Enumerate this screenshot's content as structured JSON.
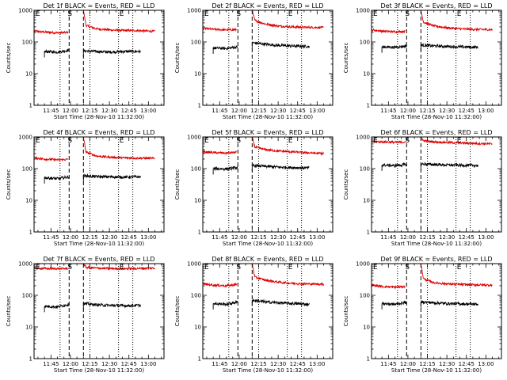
{
  "figure": {
    "colors": {
      "events": "#000000",
      "lld": "#dd0000",
      "axes": "#000000",
      "background": "#ffffff"
    },
    "markers": [
      "E",
      "S",
      "E"
    ],
    "start_time_label": "Start Time (28-Nov-10 11:32:00)"
  },
  "chart_data": [
    {
      "type": "line",
      "title": "Det 1f BLACK = Events, RED = LLD",
      "xlabel": "Start Time (28-Nov-10 11:32:00)",
      "ylabel": "Counts/sec",
      "yscale": "log",
      "ylim": [
        1,
        1000
      ],
      "xticks": [
        "11:45",
        "12:00",
        "12:15",
        "12:30",
        "12:45",
        "13:00"
      ],
      "yticks": [
        "1",
        "10",
        "100",
        "1000"
      ],
      "vlines": {
        "dotted": [
          "11:52",
          "12:15",
          "12:37",
          "12:48"
        ],
        "dashed": [
          "11:59",
          "12:10"
        ]
      },
      "series": [
        {
          "name": "LLD",
          "color": "#dd0000",
          "segments": [
            {
              "x": [
                "11:32",
                "11:40",
                "11:50",
                "11:58"
              ],
              "y": [
                220,
                205,
                195,
                200
              ]
            },
            {
              "x": [
                "12:10",
                "12:12",
                "12:20",
                "12:30",
                "12:40",
                "12:50",
                "13:05"
              ],
              "y": [
                1000,
                330,
                260,
                240,
                230,
                230,
                215
              ]
            }
          ]
        },
        {
          "name": "Events",
          "color": "#000000",
          "segments": [
            {
              "x": [
                "11:40",
                "11:50",
                "11:59"
              ],
              "y": [
                50,
                48,
                55
              ]
            },
            {
              "x": [
                "12:10",
                "12:20",
                "12:30",
                "12:40",
                "12:54"
              ],
              "y": [
                52,
                50,
                48,
                50,
                50
              ]
            }
          ]
        }
      ]
    },
    {
      "type": "line",
      "title": "Det 2f BLACK = Events, RED = LLD",
      "xlabel": "Start Time (28-Nov-10 11:32:00)",
      "ylabel": "Counts/sec",
      "yscale": "log",
      "ylim": [
        1,
        1000
      ],
      "xticks": [
        "11:45",
        "12:00",
        "12:15",
        "12:30",
        "12:45",
        "13:00"
      ],
      "yticks": [
        "1",
        "10",
        "100",
        "1000"
      ],
      "vlines": {
        "dotted": [
          "11:52",
          "12:15",
          "12:37",
          "12:48"
        ],
        "dashed": [
          "11:59",
          "12:10"
        ]
      },
      "series": [
        {
          "name": "LLD",
          "color": "#dd0000",
          "segments": [
            {
              "x": [
                "11:32",
                "11:40",
                "11:50",
                "11:58"
              ],
              "y": [
                270,
                250,
                240,
                245
              ]
            },
            {
              "x": [
                "12:10",
                "12:12",
                "12:20",
                "12:30",
                "12:40",
                "12:50",
                "13:05"
              ],
              "y": [
                1000,
                480,
                370,
                320,
                300,
                290,
                285
              ]
            }
          ]
        },
        {
          "name": "Events",
          "color": "#000000",
          "segments": [
            {
              "x": [
                "11:40",
                "11:50",
                "11:59"
              ],
              "y": [
                65,
                62,
                70
              ]
            },
            {
              "x": [
                "12:10",
                "12:20",
                "12:30",
                "12:40",
                "12:54"
              ],
              "y": [
                95,
                85,
                78,
                75,
                72
              ]
            }
          ]
        }
      ]
    },
    {
      "type": "line",
      "title": "Det 3f BLACK = Events, RED = LLD",
      "xlabel": "Start Time (28-Nov-10 11:32:00)",
      "ylabel": "Counts/sec",
      "yscale": "log",
      "ylim": [
        1,
        1000
      ],
      "xticks": [
        "11:45",
        "12:00",
        "12:15",
        "12:30",
        "12:45",
        "13:00"
      ],
      "yticks": [
        "1",
        "10",
        "100",
        "1000"
      ],
      "vlines": {
        "dotted": [
          "11:52",
          "12:15",
          "12:37",
          "12:48"
        ],
        "dashed": [
          "11:59",
          "12:10"
        ]
      },
      "series": [
        {
          "name": "LLD",
          "color": "#dd0000",
          "segments": [
            {
              "x": [
                "11:32",
                "11:40",
                "11:50",
                "11:58"
              ],
              "y": [
                240,
                220,
                210,
                215
              ]
            },
            {
              "x": [
                "12:10",
                "12:12",
                "12:20",
                "12:30",
                "12:40",
                "12:50",
                "13:05"
              ],
              "y": [
                1000,
                420,
                320,
                280,
                260,
                250,
                245
              ]
            }
          ]
        },
        {
          "name": "Events",
          "color": "#000000",
          "segments": [
            {
              "x": [
                "11:40",
                "11:50",
                "11:59"
              ],
              "y": [
                70,
                68,
                75
              ]
            },
            {
              "x": [
                "12:10",
                "12:20",
                "12:30",
                "12:40",
                "12:54"
              ],
              "y": [
                80,
                75,
                72,
                70,
                68
              ]
            }
          ]
        }
      ]
    },
    {
      "type": "line",
      "title": "Det 4f BLACK = Events, RED = LLD",
      "xlabel": "Start Time (28-Nov-10 11:32:00)",
      "ylabel": "Counts/sec",
      "yscale": "log",
      "ylim": [
        1,
        1000
      ],
      "xticks": [
        "11:45",
        "12:00",
        "12:15",
        "12:30",
        "12:45",
        "13:00"
      ],
      "yticks": [
        "1",
        "10",
        "100",
        "1000"
      ],
      "vlines": {
        "dotted": [
          "11:52",
          "12:15",
          "12:37",
          "12:48"
        ],
        "dashed": [
          "11:59",
          "12:10"
        ]
      },
      "series": [
        {
          "name": "LLD",
          "color": "#dd0000",
          "segments": [
            {
              "x": [
                "11:32",
                "11:40",
                "11:50",
                "11:58"
              ],
              "y": [
                220,
                200,
                190,
                195
              ]
            },
            {
              "x": [
                "12:10",
                "12:12",
                "12:20",
                "12:30",
                "12:40",
                "12:50",
                "13:05"
              ],
              "y": [
                1000,
                330,
                250,
                230,
                220,
                215,
                210
              ]
            }
          ]
        },
        {
          "name": "Events",
          "color": "#000000",
          "segments": [
            {
              "x": [
                "11:40",
                "11:50",
                "11:59"
              ],
              "y": [
                52,
                48,
                55
              ]
            },
            {
              "x": [
                "12:10",
                "12:20",
                "12:30",
                "12:40",
                "12:54"
              ],
              "y": [
                60,
                56,
                55,
                54,
                55
              ]
            }
          ]
        }
      ]
    },
    {
      "type": "line",
      "title": "Det 5f BLACK = Events, RED = LLD",
      "xlabel": "Start Time (28-Nov-10 11:32:00)",
      "ylabel": "Counts/sec",
      "yscale": "log",
      "ylim": [
        1,
        1000
      ],
      "xticks": [
        "11:45",
        "12:00",
        "12:15",
        "12:30",
        "12:45",
        "13:00"
      ],
      "yticks": [
        "1",
        "10",
        "100",
        "1000"
      ],
      "vlines": {
        "dotted": [
          "11:52",
          "12:15",
          "12:37",
          "12:48"
        ],
        "dashed": [
          "11:59",
          "12:10"
        ]
      },
      "series": [
        {
          "name": "LLD",
          "color": "#dd0000",
          "segments": [
            {
              "x": [
                "11:32",
                "11:40",
                "11:50",
                "11:58"
              ],
              "y": [
                340,
                320,
                310,
                330
              ]
            },
            {
              "x": [
                "12:10",
                "12:12",
                "12:20",
                "12:30",
                "12:40",
                "12:50",
                "13:05"
              ],
              "y": [
                1000,
                480,
                400,
                360,
                340,
                320,
                300
              ]
            }
          ]
        },
        {
          "name": "Events",
          "color": "#000000",
          "segments": [
            {
              "x": [
                "11:40",
                "11:50",
                "11:59"
              ],
              "y": [
                100,
                98,
                108
              ]
            },
            {
              "x": [
                "12:10",
                "12:20",
                "12:30",
                "12:40",
                "12:54"
              ],
              "y": [
                125,
                118,
                112,
                108,
                105
              ]
            }
          ]
        }
      ]
    },
    {
      "type": "line",
      "title": "Det 6f BLACK = Events, RED = LLD",
      "xlabel": "Start Time (28-Nov-10 11:32:00)",
      "ylabel": "Counts/sec",
      "yscale": "log",
      "ylim": [
        1,
        1000
      ],
      "xticks": [
        "11:45",
        "12:00",
        "12:15",
        "12:30",
        "12:45",
        "13:00"
      ],
      "yticks": [
        "1",
        "10",
        "100",
        "1000"
      ],
      "vlines": {
        "dotted": [
          "11:52",
          "12:15",
          "12:37",
          "12:48"
        ],
        "dashed": [
          "11:59",
          "12:10"
        ]
      },
      "series": [
        {
          "name": "LLD",
          "color": "#dd0000",
          "segments": [
            {
              "x": [
                "11:32",
                "11:40",
                "11:50",
                "11:58"
              ],
              "y": [
                720,
                700,
                680,
                690
              ]
            },
            {
              "x": [
                "12:10",
                "12:12",
                "12:20",
                "12:30",
                "12:40",
                "12:50",
                "13:05"
              ],
              "y": [
                1000,
                760,
                700,
                670,
                650,
                630,
                600
              ]
            }
          ]
        },
        {
          "name": "Events",
          "color": "#000000",
          "segments": [
            {
              "x": [
                "11:40",
                "11:50",
                "11:59"
              ],
              "y": [
                130,
                125,
                135
              ]
            },
            {
              "x": [
                "12:10",
                "12:20",
                "12:30",
                "12:40",
                "12:54"
              ],
              "y": [
                140,
                135,
                130,
                128,
                125
              ]
            }
          ]
        }
      ]
    },
    {
      "type": "line",
      "title": "Det 7f BLACK = Events, RED = LLD",
      "xlabel": "Start Time (28-Nov-10 11:32:00)",
      "ylabel": "Counts/sec",
      "yscale": "log",
      "ylim": [
        1,
        1000
      ],
      "xticks": [
        "11:45",
        "12:00",
        "12:15",
        "12:30",
        "12:45",
        "13:00"
      ],
      "yticks": [
        "1",
        "10",
        "100",
        "1000"
      ],
      "vlines": {
        "dotted": [
          "11:52",
          "12:15",
          "12:37",
          "12:48"
        ],
        "dashed": [
          "11:59",
          "12:10"
        ]
      },
      "series": [
        {
          "name": "LLD",
          "color": "#dd0000",
          "segments": [
            {
              "x": [
                "11:32",
                "11:40",
                "11:50",
                "11:58"
              ],
              "y": [
                720,
                700,
                690,
                700
              ]
            },
            {
              "x": [
                "12:10",
                "12:12",
                "12:20",
                "12:30",
                "12:40",
                "12:50",
                "13:05"
              ],
              "y": [
                1000,
                760,
                720,
                700,
                690,
                700,
                720
              ]
            }
          ]
        },
        {
          "name": "Events",
          "color": "#000000",
          "segments": [
            {
              "x": [
                "11:40",
                "11:50",
                "11:59"
              ],
              "y": [
                45,
                43,
                52
              ]
            },
            {
              "x": [
                "12:10",
                "12:20",
                "12:30",
                "12:40",
                "12:54"
              ],
              "y": [
                55,
                50,
                48,
                47,
                48
              ]
            }
          ]
        }
      ]
    },
    {
      "type": "line",
      "title": "Det 8f BLACK = Events, RED = LLD",
      "xlabel": "Start Time (28-Nov-10 11:32:00)",
      "ylabel": "Counts/sec",
      "yscale": "log",
      "ylim": [
        1,
        1000
      ],
      "xticks": [
        "11:45",
        "12:00",
        "12:15",
        "12:30",
        "12:45",
        "13:00"
      ],
      "yticks": [
        "1",
        "10",
        "100",
        "1000"
      ],
      "vlines": {
        "dotted": [
          "11:52",
          "12:15",
          "12:37",
          "12:48"
        ],
        "dashed": [
          "11:59",
          "12:10"
        ]
      },
      "series": [
        {
          "name": "LLD",
          "color": "#dd0000",
          "segments": [
            {
              "x": [
                "11:32",
                "11:40",
                "11:50",
                "11:58"
              ],
              "y": [
                230,
                210,
                200,
                220
              ]
            },
            {
              "x": [
                "12:10",
                "12:12",
                "12:20",
                "12:30",
                "12:40",
                "12:50",
                "13:05"
              ],
              "y": [
                1000,
                380,
                300,
                260,
                240,
                230,
                225
              ]
            }
          ]
        },
        {
          "name": "Events",
          "color": "#000000",
          "segments": [
            {
              "x": [
                "11:40",
                "11:50",
                "11:59"
              ],
              "y": [
                55,
                52,
                62
              ]
            },
            {
              "x": [
                "12:10",
                "12:20",
                "12:30",
                "12:40",
                "12:54"
              ],
              "y": [
                70,
                62,
                58,
                55,
                52
              ]
            }
          ]
        }
      ]
    },
    {
      "type": "line",
      "title": "Det 9f BLACK = Events, RED = LLD",
      "xlabel": "Start Time (28-Nov-10 11:32:00)",
      "ylabel": "Counts/sec",
      "yscale": "log",
      "ylim": [
        1,
        1000
      ],
      "xticks": [
        "11:45",
        "12:00",
        "12:15",
        "12:30",
        "12:45",
        "13:00"
      ],
      "yticks": [
        "1",
        "10",
        "100",
        "1000"
      ],
      "vlines": {
        "dotted": [
          "11:52",
          "12:15",
          "12:37",
          "12:48"
        ],
        "dashed": [
          "11:59",
          "12:10"
        ]
      },
      "series": [
        {
          "name": "LLD",
          "color": "#dd0000",
          "segments": [
            {
              "x": [
                "11:32",
                "11:40",
                "11:50",
                "11:58"
              ],
              "y": [
                210,
                190,
                180,
                190
              ]
            },
            {
              "x": [
                "12:10",
                "12:12",
                "12:20",
                "12:30",
                "12:40",
                "12:50",
                "13:05"
              ],
              "y": [
                1000,
                330,
                250,
                230,
                220,
                215,
                210
              ]
            }
          ]
        },
        {
          "name": "Events",
          "color": "#000000",
          "segments": [
            {
              "x": [
                "11:40",
                "11:50",
                "11:59"
              ],
              "y": [
                55,
                52,
                60
              ]
            },
            {
              "x": [
                "12:10",
                "12:20",
                "12:30",
                "12:40",
                "12:54"
              ],
              "y": [
                62,
                58,
                55,
                54,
                52
              ]
            }
          ]
        }
      ]
    }
  ]
}
